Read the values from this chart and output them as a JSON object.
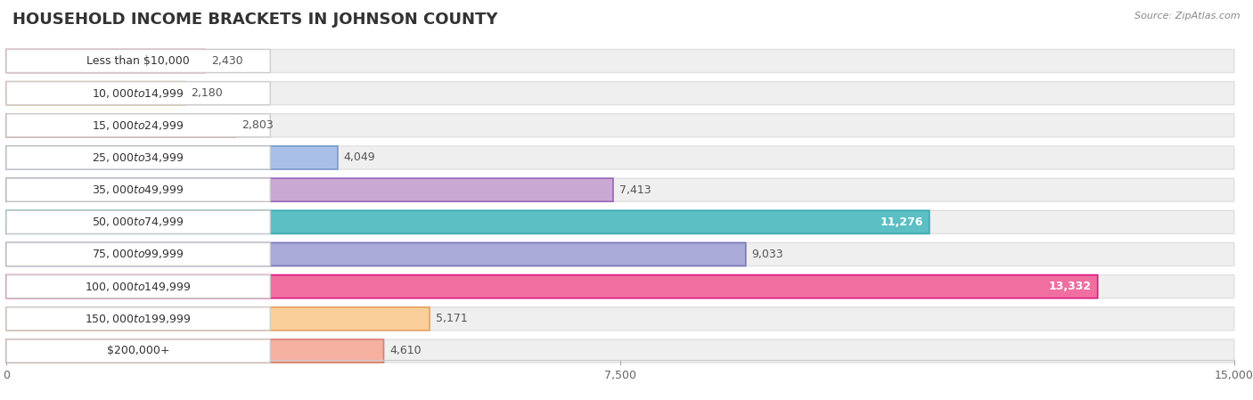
{
  "title": "HOUSEHOLD INCOME BRACKETS IN JOHNSON COUNTY",
  "source": "Source: ZipAtlas.com",
  "categories": [
    "Less than $10,000",
    "$10,000 to $14,999",
    "$15,000 to $24,999",
    "$25,000 to $34,999",
    "$35,000 to $49,999",
    "$50,000 to $74,999",
    "$75,000 to $99,999",
    "$100,000 to $149,999",
    "$150,000 to $199,999",
    "$200,000+"
  ],
  "values": [
    2430,
    2180,
    2803,
    4049,
    7413,
    11276,
    9033,
    13332,
    5171,
    4610
  ],
  "bar_colors": [
    "#F79EB5",
    "#FBCF9A",
    "#F5B0A0",
    "#AABFE8",
    "#C9A8D4",
    "#5BBFC4",
    "#AAAAD8",
    "#F06FA0",
    "#FBCF9A",
    "#F5B0A0"
  ],
  "bar_edge_colors": [
    "#E8709A",
    "#E8A060",
    "#D88070",
    "#7799CC",
    "#9966BB",
    "#3AAAB0",
    "#7777BB",
    "#E01880",
    "#E8A060",
    "#D88070"
  ],
  "xlim_max": 15000,
  "xticks": [
    0,
    7500,
    15000
  ],
  "xtick_labels": [
    "0",
    "7,500",
    "15,000"
  ],
  "bg_color": "#ffffff",
  "row_bg_color": "#efefef",
  "row_bg_edge": "#e0e0e0",
  "label_bg_color": "#ffffff",
  "title_fontsize": 13,
  "label_fontsize": 9,
  "value_fontsize": 9,
  "fig_width": 14.06,
  "fig_height": 4.49,
  "dpi": 100
}
